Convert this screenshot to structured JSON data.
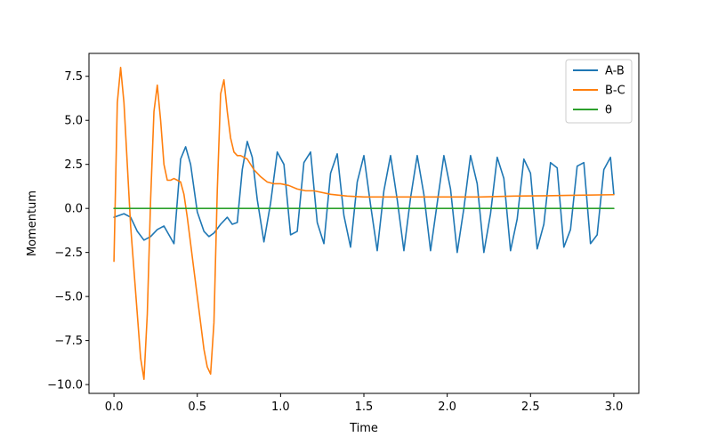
{
  "chart_data": {
    "type": "line",
    "title": "",
    "xlabel": "Time",
    "ylabel": "Momentum",
    "xlim": [
      -0.15,
      3.15
    ],
    "ylim": [
      -10.5,
      8.8
    ],
    "x_ticks": [
      0.0,
      0.5,
      1.0,
      1.5,
      2.0,
      2.5,
      3.0
    ],
    "x_tick_labels": [
      "0.0",
      "0.5",
      "1.0",
      "1.5",
      "2.0",
      "2.5",
      "3.0"
    ],
    "y_ticks": [
      -10.0,
      -7.5,
      -5.0,
      -2.5,
      0.0,
      2.5,
      5.0,
      7.5
    ],
    "y_tick_labels": [
      "−10.0",
      "−7.5",
      "−5.0",
      "−2.5",
      "0.0",
      "2.5",
      "5.0",
      "7.5"
    ],
    "grid": false,
    "legend_position": "top-right",
    "series": [
      {
        "name": "A-B",
        "color": "#1f77b4",
        "x": [
          0.0,
          0.03,
          0.06,
          0.1,
          0.14,
          0.18,
          0.22,
          0.26,
          0.3,
          0.33,
          0.36,
          0.4,
          0.43,
          0.46,
          0.5,
          0.54,
          0.57,
          0.6,
          0.64,
          0.68,
          0.71,
          0.74,
          0.77,
          0.8,
          0.83,
          0.86,
          0.9,
          0.94,
          0.98,
          1.02,
          1.06,
          1.1,
          1.14,
          1.18,
          1.22,
          1.26,
          1.3,
          1.34,
          1.38,
          1.42,
          1.46,
          1.5,
          1.54,
          1.58,
          1.62,
          1.66,
          1.7,
          1.74,
          1.78,
          1.82,
          1.86,
          1.9,
          1.94,
          1.98,
          2.02,
          2.06,
          2.1,
          2.14,
          2.18,
          2.22,
          2.26,
          2.3,
          2.34,
          2.38,
          2.42,
          2.46,
          2.5,
          2.54,
          2.58,
          2.62,
          2.66,
          2.7,
          2.74,
          2.78,
          2.82,
          2.86,
          2.9,
          2.94,
          2.98,
          3.0
        ],
        "y": [
          -0.5,
          -0.4,
          -0.3,
          -0.5,
          -1.3,
          -1.8,
          -1.6,
          -1.2,
          -1.0,
          -1.5,
          -2.0,
          2.8,
          3.5,
          2.5,
          -0.2,
          -1.3,
          -1.6,
          -1.4,
          -0.9,
          -0.5,
          -0.9,
          -0.8,
          2.2,
          3.8,
          2.9,
          0.5,
          -1.9,
          0.3,
          3.2,
          2.5,
          -1.5,
          -1.3,
          2.6,
          3.2,
          -0.8,
          -2.0,
          2.0,
          3.1,
          -0.4,
          -2.2,
          1.5,
          3.0,
          0.2,
          -2.4,
          1.0,
          3.0,
          0.5,
          -2.4,
          0.6,
          3.0,
          0.8,
          -2.4,
          0.3,
          3.0,
          1.1,
          -2.5,
          0.0,
          3.0,
          1.4,
          -2.5,
          -0.3,
          2.9,
          1.7,
          -2.4,
          -0.6,
          2.8,
          2.0,
          -2.3,
          -0.9,
          2.6,
          2.3,
          -2.2,
          -1.2,
          2.4,
          2.6,
          -2.0,
          -1.5,
          2.2,
          2.9,
          0.8
        ]
      },
      {
        "name": "B-C",
        "color": "#ff7f0e",
        "x": [
          0.0,
          0.02,
          0.04,
          0.06,
          0.08,
          0.1,
          0.12,
          0.14,
          0.16,
          0.18,
          0.2,
          0.22,
          0.24,
          0.26,
          0.28,
          0.3,
          0.32,
          0.34,
          0.36,
          0.38,
          0.4,
          0.42,
          0.44,
          0.46,
          0.48,
          0.5,
          0.52,
          0.54,
          0.56,
          0.58,
          0.6,
          0.62,
          0.64,
          0.66,
          0.68,
          0.7,
          0.72,
          0.74,
          0.76,
          0.8,
          0.84,
          0.88,
          0.92,
          0.96,
          1.0,
          1.05,
          1.1,
          1.15,
          1.2,
          1.3,
          1.4,
          1.5,
          1.6,
          1.7,
          1.8,
          1.9,
          2.0,
          2.2,
          2.4,
          2.6,
          2.8,
          3.0
        ],
        "y": [
          -3.0,
          6.0,
          8.0,
          6.0,
          2.5,
          -1.0,
          -3.5,
          -6.0,
          -8.5,
          -9.7,
          -6.0,
          0.5,
          5.5,
          7.0,
          5.0,
          2.5,
          1.6,
          1.6,
          1.7,
          1.6,
          1.5,
          0.8,
          -0.5,
          -2.0,
          -3.5,
          -5.0,
          -6.5,
          -8.0,
          -9.0,
          -9.4,
          -6.5,
          1.0,
          6.5,
          7.3,
          5.5,
          4.0,
          3.2,
          3.0,
          3.0,
          2.8,
          2.2,
          1.8,
          1.5,
          1.4,
          1.4,
          1.3,
          1.1,
          1.0,
          1.0,
          0.8,
          0.7,
          0.65,
          0.65,
          0.65,
          0.65,
          0.65,
          0.65,
          0.65,
          0.7,
          0.72,
          0.75,
          0.78
        ]
      },
      {
        "name": "θ",
        "color": "#2ca02c",
        "x": [
          0.0,
          3.0
        ],
        "y": [
          0.0,
          0.0
        ]
      }
    ]
  }
}
